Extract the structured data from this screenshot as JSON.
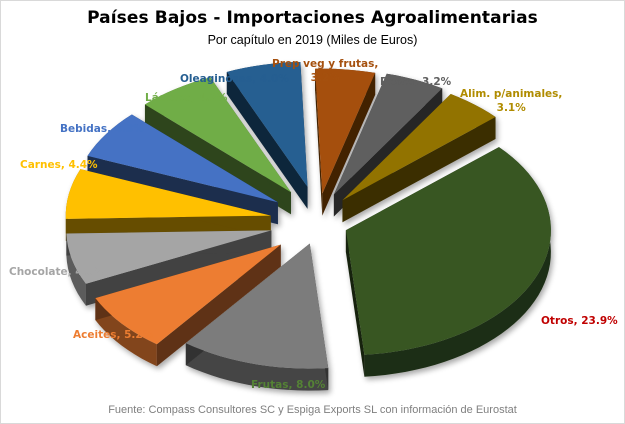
{
  "chart_data": {
    "type": "pie",
    "variant": "3d-exploded",
    "title": "Países Bajos - Importaciones Agroalimentarias",
    "subtitle": "Por capítulo en 2019  (Miles de Euros)",
    "unit": "% of total",
    "categories": [
      "Prep veg y frutas",
      "Pesca",
      "Alim. p/animales",
      "Otros",
      "Frutas",
      "Aceites",
      "Chocolate",
      "Carnes",
      "Bebidas",
      "Lácteos",
      "Oleaginosas"
    ],
    "values": [
      3.2,
      3.2,
      3.1,
      23.9,
      8.0,
      5.2,
      4.5,
      4.4,
      4.3,
      4.2,
      4.0
    ],
    "colors": [
      "#a5500e",
      "#5f5f5f",
      "#927300",
      "#375623",
      "#7b7b7b",
      "#ed7d31",
      "#a5a5a5",
      "#ffc000",
      "#4472c4",
      "#70ad47",
      "#255e91"
    ],
    "label_colors": [
      "#a5500e",
      "#5f5f5f",
      "#b08c00",
      "#c00000",
      "#548235",
      "#ed7d31",
      "#a5a5a5",
      "#ffc000",
      "#4472c4",
      "#70ad47",
      "#255e91"
    ],
    "data_labels": [
      "Prep veg y frutas,",
      "Pesca,  3.2%",
      "Alim. p/animales,",
      "Otros, 23.9%",
      "Frutas, 8.0%",
      "Aceites, 5.2%",
      "Chocolate,  4.5%",
      "Carnes, 4.4%",
      "Bebidas,  4.3%",
      "Lácteos, 4.2%",
      "Oleaginosas,  4.0%"
    ],
    "data_labels_line2": {
      "prep": "3.2%",
      "alim": "3.1%"
    },
    "legend": "none (data labels on slices)",
    "source": "Fuente: Compass Consultores SC y Espiga Exports SL con información de Eurostat"
  },
  "title": "Países Bajos - Importaciones Agroalimentarias",
  "subtitle": "Por capítulo en 2019  (Miles de Euros)",
  "labels": {
    "prep_1": "Prep veg y frutas,",
    "prep_2": "3.2%",
    "pesca": "Pesca,  3.2%",
    "alim_1": "Alim. p/animales,",
    "alim_2": "3.1%",
    "otros": "Otros, 23.9%",
    "frutas": "Frutas, 8.0%",
    "aceites": "Aceites, 5.2%",
    "chocolate": "Chocolate,  4.5%",
    "carnes": "Carnes, 4.4%",
    "bebidas": "Bebidas,  4.3%",
    "lacteos": "Lácteos, 4.2%",
    "oleaginosas": "Oleaginosas,  4.0%"
  },
  "source": "Fuente: Compass Consultores SC y Espiga Exports SL con información de Eurostat"
}
